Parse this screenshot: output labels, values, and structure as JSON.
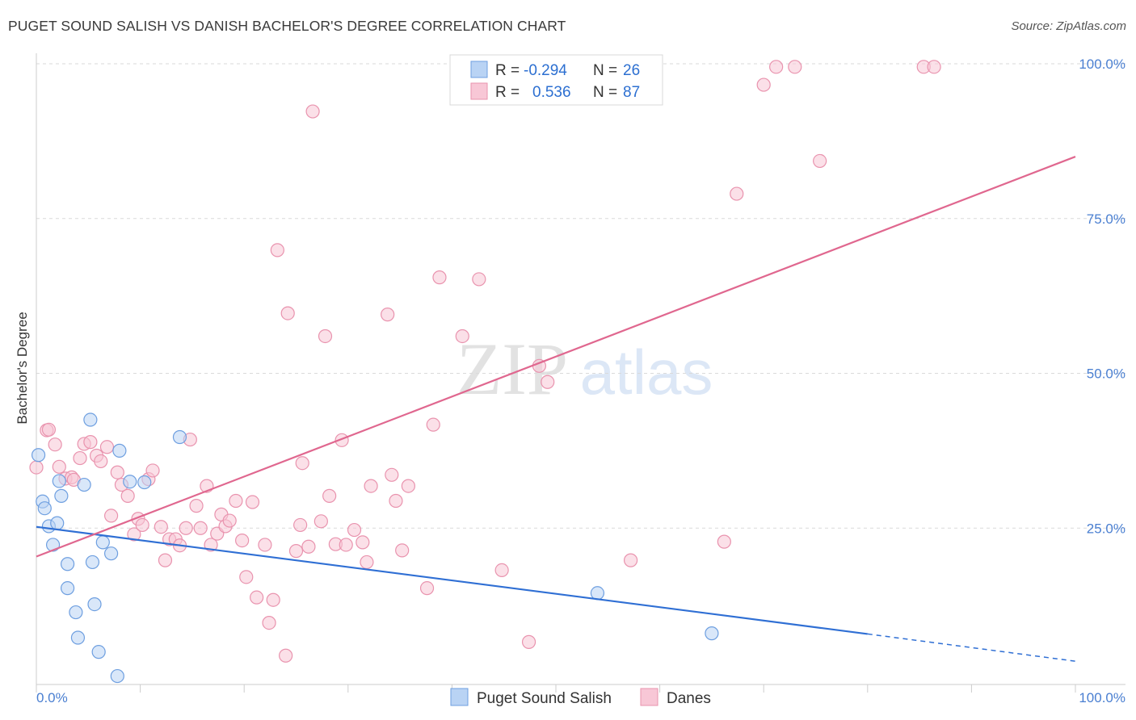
{
  "header": {
    "title": "PUGET SOUND SALISH VS DANISH BACHELOR'S DEGREE CORRELATION CHART",
    "source": "Source: ZipAtlas.com"
  },
  "watermark": {
    "zip": "ZIP",
    "atlas": "atlas"
  },
  "stats_legend": {
    "r_label": "R =",
    "n_label": "N =",
    "rows": [
      {
        "r": "-0.294",
        "n": "26",
        "fill": "#b9d3f4",
        "stroke": "#6e9fe0"
      },
      {
        "r": "0.536",
        "n": "87",
        "fill": "#f8c7d6",
        "stroke": "#e993ae"
      }
    ]
  },
  "chart_data": {
    "type": "scatter",
    "ylabel": "Bachelor's Degree",
    "xlabel": "",
    "xlim": [
      0,
      100
    ],
    "ylim": [
      0,
      100
    ],
    "x_tick_labels": [
      "0.0%",
      "100.0%"
    ],
    "y_tick_labels": [
      "25.0%",
      "50.0%",
      "75.0%",
      "100.0%"
    ],
    "y_ticks": [
      25,
      50,
      75,
      100
    ],
    "grid": "horizontal dashed",
    "legend_position": "top-center",
    "series": [
      {
        "name": "Puget Sound Salish",
        "color": "#6e9fe0",
        "fill": "#b9d3f4",
        "line_color": "#2f6fd4",
        "trend": {
          "x0": 0,
          "y0": 25.2,
          "x1": 80,
          "y1": 7.9,
          "dashed_to": 100,
          "y_end": 3.5
        },
        "points": [
          [
            0.2,
            36.8
          ],
          [
            0.6,
            29.3
          ],
          [
            0.8,
            28.2
          ],
          [
            1.2,
            25.3
          ],
          [
            1.6,
            22.3
          ],
          [
            2.0,
            25.8
          ],
          [
            2.2,
            32.6
          ],
          [
            2.4,
            30.2
          ],
          [
            3.0,
            19.2
          ],
          [
            3.0,
            15.3
          ],
          [
            3.8,
            11.4
          ],
          [
            4.0,
            7.3
          ],
          [
            4.6,
            32.0
          ],
          [
            5.2,
            42.5
          ],
          [
            5.4,
            19.5
          ],
          [
            5.6,
            12.7
          ],
          [
            6.0,
            5.0
          ],
          [
            6.4,
            22.7
          ],
          [
            7.2,
            20.9
          ],
          [
            7.8,
            1.1
          ],
          [
            8.0,
            37.5
          ],
          [
            9.0,
            32.5
          ],
          [
            10.4,
            32.4
          ],
          [
            13.8,
            39.7
          ],
          [
            54.0,
            14.5
          ],
          [
            65.0,
            8.0
          ]
        ]
      },
      {
        "name": "Danes",
        "color": "#e993ae",
        "fill": "#f8c7d6",
        "line_color": "#e0678f",
        "trend": {
          "x0": 0,
          "y0": 20.4,
          "x1": 100,
          "y1": 85.0
        },
        "points": [
          [
            0.0,
            34.8
          ],
          [
            1.0,
            40.8
          ],
          [
            1.2,
            40.9
          ],
          [
            1.8,
            38.5
          ],
          [
            2.2,
            34.9
          ],
          [
            2.8,
            33.0
          ],
          [
            3.4,
            33.2
          ],
          [
            3.6,
            32.8
          ],
          [
            4.2,
            36.3
          ],
          [
            4.6,
            38.6
          ],
          [
            5.2,
            38.9
          ],
          [
            5.8,
            36.7
          ],
          [
            6.2,
            35.8
          ],
          [
            6.8,
            38.1
          ],
          [
            7.2,
            27.0
          ],
          [
            7.8,
            34.0
          ],
          [
            8.2,
            32.0
          ],
          [
            8.8,
            30.2
          ],
          [
            9.4,
            24.0
          ],
          [
            9.8,
            26.5
          ],
          [
            10.2,
            25.5
          ],
          [
            10.8,
            32.9
          ],
          [
            11.2,
            34.3
          ],
          [
            12.0,
            25.2
          ],
          [
            12.4,
            19.8
          ],
          [
            12.8,
            23.2
          ],
          [
            13.4,
            23.2
          ],
          [
            13.8,
            22.2
          ],
          [
            14.4,
            25.0
          ],
          [
            14.8,
            39.3
          ],
          [
            15.4,
            28.6
          ],
          [
            15.8,
            25.0
          ],
          [
            16.4,
            31.8
          ],
          [
            16.8,
            22.3
          ],
          [
            17.4,
            24.1
          ],
          [
            17.8,
            27.2
          ],
          [
            18.2,
            25.3
          ],
          [
            18.6,
            26.2
          ],
          [
            19.2,
            29.4
          ],
          [
            19.8,
            23.0
          ],
          [
            20.2,
            17.1
          ],
          [
            20.8,
            29.2
          ],
          [
            21.2,
            13.8
          ],
          [
            22.0,
            22.3
          ],
          [
            22.4,
            9.7
          ],
          [
            22.8,
            13.4
          ],
          [
            23.2,
            69.9
          ],
          [
            24.0,
            4.4
          ],
          [
            24.2,
            59.7
          ],
          [
            25.0,
            21.3
          ],
          [
            25.4,
            25.5
          ],
          [
            25.6,
            35.5
          ],
          [
            26.2,
            22.0
          ],
          [
            26.6,
            92.3
          ],
          [
            27.4,
            26.1
          ],
          [
            27.8,
            56.0
          ],
          [
            28.2,
            30.2
          ],
          [
            28.8,
            22.4
          ],
          [
            29.4,
            39.2
          ],
          [
            29.8,
            22.3
          ],
          [
            30.6,
            24.7
          ],
          [
            31.4,
            22.7
          ],
          [
            31.8,
            19.5
          ],
          [
            32.2,
            31.8
          ],
          [
            33.8,
            59.5
          ],
          [
            34.2,
            33.6
          ],
          [
            34.6,
            29.4
          ],
          [
            35.2,
            21.4
          ],
          [
            35.8,
            31.8
          ],
          [
            37.6,
            15.3
          ],
          [
            38.2,
            41.7
          ],
          [
            38.8,
            65.5
          ],
          [
            41.0,
            56.0
          ],
          [
            42.6,
            65.2
          ],
          [
            44.8,
            18.2
          ],
          [
            47.4,
            6.6
          ],
          [
            48.4,
            51.2
          ],
          [
            49.2,
            48.6
          ],
          [
            57.2,
            19.8
          ],
          [
            66.2,
            22.8
          ],
          [
            67.4,
            79.0
          ],
          [
            70.0,
            96.6
          ],
          [
            71.2,
            99.5
          ],
          [
            73.0,
            99.5
          ],
          [
            75.4,
            84.3
          ],
          [
            85.4,
            99.5
          ],
          [
            86.4,
            99.5
          ]
        ]
      }
    ]
  }
}
